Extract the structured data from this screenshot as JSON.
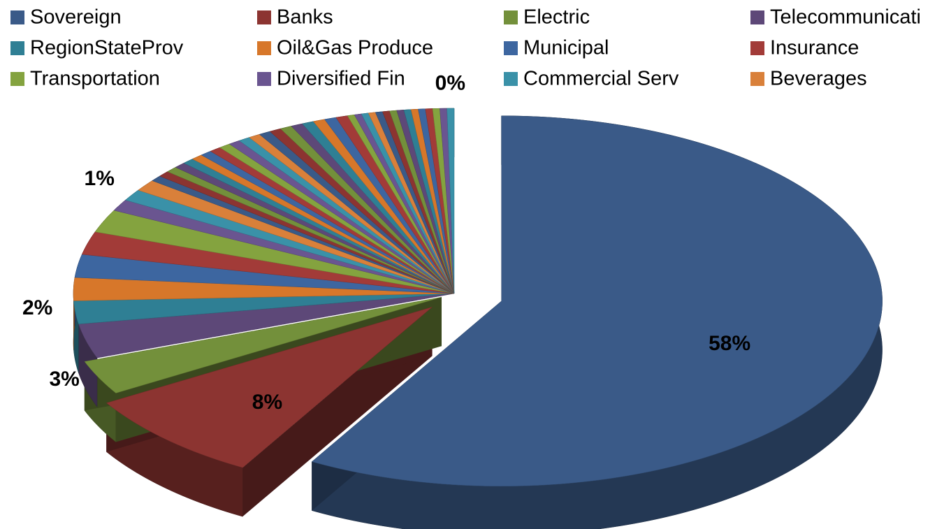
{
  "chart_data": {
    "type": "pie",
    "categories": [
      "Sovereign",
      "Banks",
      "Electric",
      "Telecommunicati",
      "RegionStateProv",
      "Oil&Gas Produce",
      "Municipal",
      "Insurance",
      "Transportation",
      "Diversified Fin",
      "Commercial Serv",
      "Beverages",
      null,
      null,
      null,
      null,
      null,
      null,
      null,
      null,
      null,
      null,
      null,
      null,
      null,
      null,
      null,
      null,
      null,
      null,
      null,
      null,
      null,
      null,
      null,
      null,
      null,
      null,
      null,
      null,
      null,
      null,
      null,
      null,
      null,
      null,
      null
    ],
    "values": [
      58,
      8,
      3,
      3,
      2,
      2,
      2,
      2,
      2,
      1,
      1,
      1,
      0.5,
      0.5,
      0.5,
      0.5,
      0.5,
      0.5,
      0.5,
      0.5,
      0.5,
      0.5,
      0.5,
      0.5,
      0.5,
      0.5,
      0.5,
      0.5,
      0.5,
      0.5,
      0.5,
      0.5,
      0.3,
      0.3,
      0.3,
      0.3,
      0.3,
      0.3,
      0.3,
      0.3,
      0.3,
      0.3,
      0.3,
      0.3,
      0.3,
      0.3,
      0.3
    ],
    "value_labels": [
      "58%",
      "8%",
      "3%",
      null,
      "2%",
      null,
      null,
      null,
      null,
      null,
      "1%",
      null,
      null,
      null,
      null,
      null,
      null,
      null,
      null,
      null,
      null,
      null,
      null,
      null,
      null,
      null,
      null,
      null,
      null,
      null,
      null,
      null,
      null,
      null,
      null,
      null,
      null,
      null,
      null,
      null,
      null,
      null,
      null,
      null,
      null,
      null,
      "0%"
    ],
    "colors": [
      "#3a5a88",
      "#8c3431",
      "#73903b",
      "#5d4878",
      "#2f7f94",
      "#d7772a",
      "#3d66a0",
      "#a23b38",
      "#84a33f",
      "#6a5590",
      "#3a91a8",
      "#d9803a"
    ],
    "legend": "top"
  }
}
